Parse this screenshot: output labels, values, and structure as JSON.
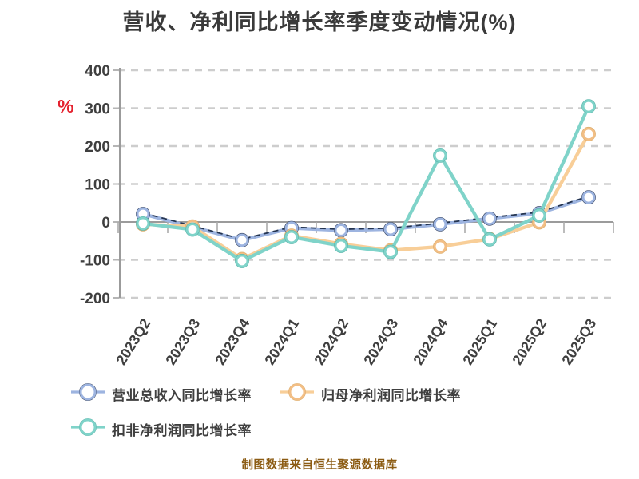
{
  "title": "营收、净利同比增长率季度变动情况(%)",
  "caption": "制图数据来自恒生聚源数据库",
  "chart_data": {
    "type": "line",
    "categories": [
      "2023Q2",
      "2023Q3",
      "2023Q4",
      "2024Q1",
      "2024Q2",
      "2024Q3",
      "2024Q4",
      "2025Q1",
      "2025Q2",
      "2025Q3"
    ],
    "series": [
      {
        "name": "营业总收入同比增长率",
        "style": "dashed",
        "line_color": "#9DB4E0",
        "dash_color": "#243450",
        "marker_ring": "#9DB4E0",
        "marker_outline": "#2E3C59",
        "values": [
          21,
          -13,
          -48,
          -16,
          -22,
          -19,
          -6,
          9,
          23,
          65
        ]
      },
      {
        "name": "归母净利润同比增长率",
        "style": "solid",
        "line_color": "#F8CE98",
        "dash_color": "",
        "marker_ring": "#F2BE85",
        "marker_outline": "#D9A964",
        "values": [
          -6,
          -12,
          -98,
          -36,
          -58,
          -75,
          -65,
          -45,
          -1,
          232
        ]
      },
      {
        "name": "扣非净利润同比增长率",
        "style": "solid",
        "line_color": "#7FD3C9",
        "dash_color": "",
        "marker_ring": "#7FD3C9",
        "marker_outline": "#54B2A7",
        "values": [
          -4,
          -20,
          -103,
          -40,
          -63,
          -79,
          175,
          -46,
          17,
          305
        ]
      }
    ],
    "ylim": [
      -200,
      400
    ],
    "yticks": [
      400,
      300,
      200,
      100,
      0,
      -100,
      -200
    ],
    "y_unit": "%",
    "grid": true,
    "legend_position": "bottom",
    "axis_color": "#9B9B9B",
    "grid_color": "#CDCDCD",
    "tick_color": "#ABABAB",
    "tick_label_color": "#3F3F3F",
    "unit_color": "#E4212E"
  }
}
